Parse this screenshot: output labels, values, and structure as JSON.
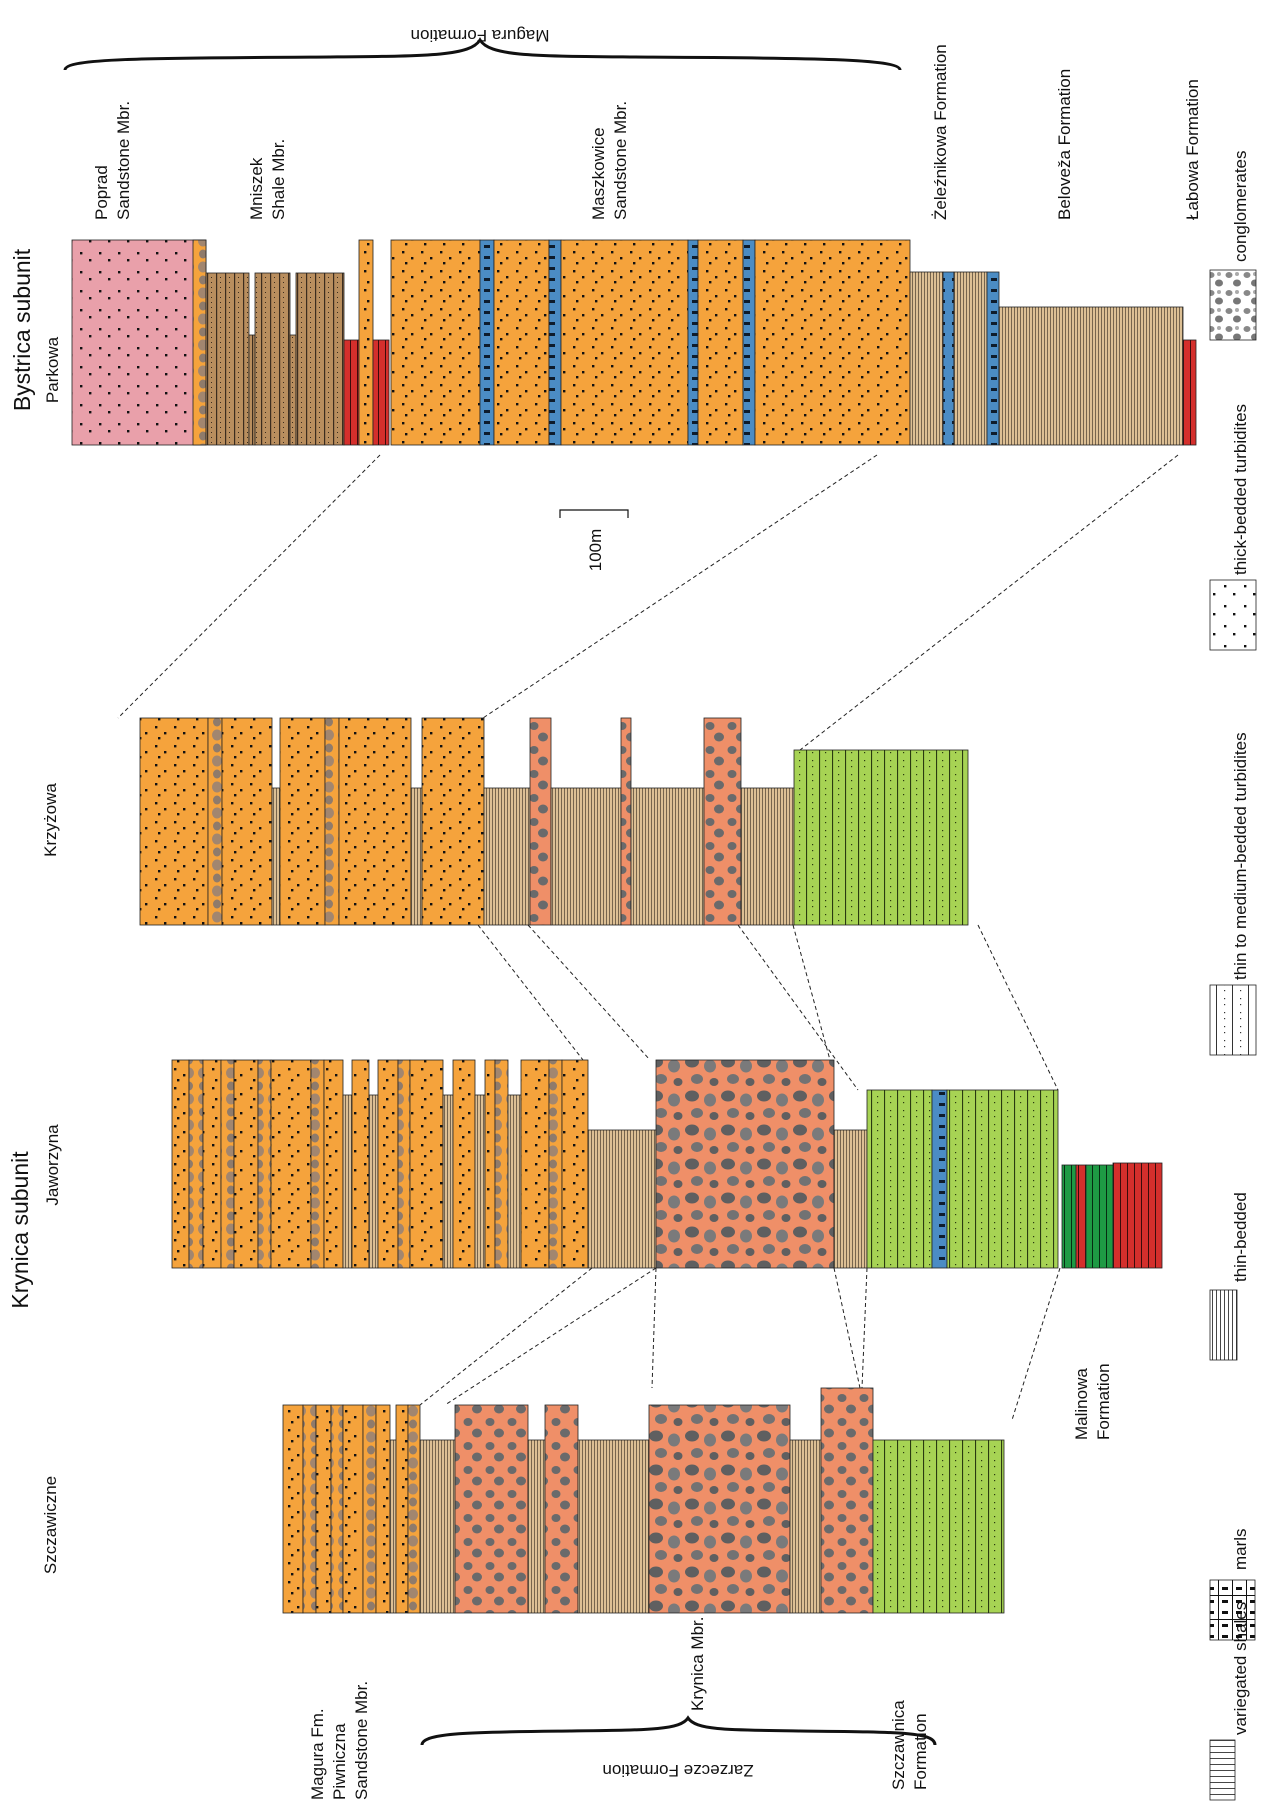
{
  "groups": {
    "bystrica": "Bystrica subunit",
    "krynica": "Krynica subunit"
  },
  "sections": {
    "parkowa": "Parkowa",
    "krzyzowa": "Krzyżowa",
    "jaworzyna": "Jaworzyna",
    "szczawiczne": "Szczawiczne"
  },
  "units": {
    "magura_formation": "Magura Formation",
    "poprad_1": "Poprad",
    "poprad_2": "Sandstone Mbr.",
    "mniszek_1": "Mniszek",
    "mniszek_2": "Shale Mbr.",
    "maszkowice_1": "Maszkowice",
    "maszkowice_2": "Sandstone Mbr.",
    "zeleznikowa": "Żeleźnikowa Formation",
    "beloveza": "Beloveža Formation",
    "labowa": "Łabowa Formation",
    "magura_fm_1": "Magura Fm.",
    "magura_fm_2": "Piwniczna",
    "magura_fm_3": "Sandstone Mbr.",
    "krynica_mbr": "Krynica Mbr.",
    "szczawnica_1": "Szczawnica",
    "szczawnica_2": "Formation",
    "malinowa_1": "Malinowa",
    "malinowa_2": "Formation",
    "zarzecze_formation": "Zarzecze Formation"
  },
  "scale": {
    "label": "100m"
  },
  "legend": {
    "variegated": "variegated shales",
    "marls": "marls",
    "thin": "thin-bedded",
    "thin_medium": "thin to medium-bedded turbidites",
    "thick": "thick-bedded turbidites",
    "conglomerates": "conglomerates"
  },
  "colors": {
    "sandstone": "#f5a33c",
    "conglomerate": "#ef8f68",
    "thin_bedded": "#dcbf94",
    "shale_mbr": "#b98e5e",
    "variegated": "#d42f2c",
    "marls": "#4b8cc4",
    "green_turbidite": "#a7d354",
    "green_shale": "#1e9a44",
    "poprad": "#e9a0aa"
  }
}
